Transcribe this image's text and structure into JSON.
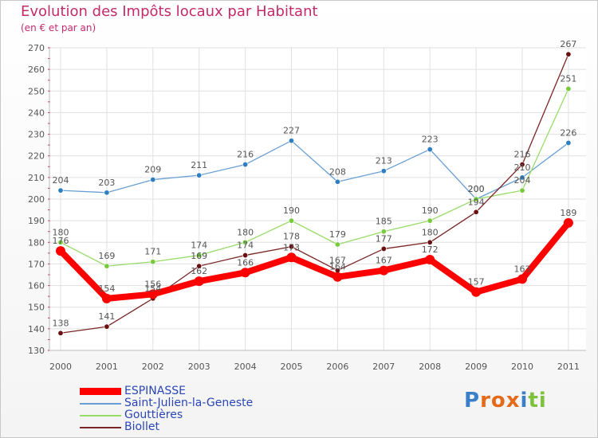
{
  "chart_data": {
    "type": "line",
    "title": "Evolution des Impôts locaux par Habitant",
    "subtitle": "(en € et par an)",
    "xlabel": "",
    "ylabel": "",
    "ylim": [
      130,
      270
    ],
    "yticks": [
      130,
      140,
      150,
      160,
      170,
      180,
      190,
      200,
      210,
      220,
      230,
      240,
      250,
      260,
      270
    ],
    "categories": [
      "2000",
      "2001",
      "2002",
      "2003",
      "2004",
      "2005",
      "2006",
      "2007",
      "2008",
      "2009",
      "2010",
      "2011"
    ],
    "grid": true,
    "legend_position": "bottom-left",
    "series": [
      {
        "name": "ESPINASSE",
        "color": "#ff0000",
        "marker_color": "#ff0000",
        "values": [
          176,
          154,
          156,
          162,
          166,
          173,
          164,
          167,
          172,
          157,
          163,
          189
        ]
      },
      {
        "name": "Saint-Julien-la-Geneste",
        "color": "#6a9fd4",
        "marker_color": "#2e7ec2",
        "values": [
          204,
          203,
          209,
          211,
          216,
          227,
          208,
          213,
          223,
          200,
          210,
          226
        ]
      },
      {
        "name": "Gouttières",
        "color": "#98dc68",
        "marker_color": "#76cc3a",
        "values": [
          180,
          169,
          171,
          174,
          180,
          190,
          179,
          185,
          190,
          200,
          204,
          251
        ]
      },
      {
        "name": "Biollet",
        "color": "#7a2525",
        "marker_color": "#6a1010",
        "values": [
          138,
          141,
          154,
          169,
          174,
          178,
          167,
          177,
          180,
          194,
          216,
          267
        ]
      }
    ]
  },
  "legend": {
    "items": [
      "ESPINASSE",
      "Saint-Julien-la-Geneste",
      "Gouttières",
      "Biollet"
    ]
  },
  "logo": {
    "letters": [
      "P",
      "r",
      "o",
      "x",
      "i",
      "t",
      "i"
    ],
    "colors": [
      "#3a7fc8",
      "#e46a1a",
      "#e46a1a",
      "#e46a1a",
      "#3a7fc8",
      "#7cc23c",
      "#7cc23c"
    ]
  }
}
